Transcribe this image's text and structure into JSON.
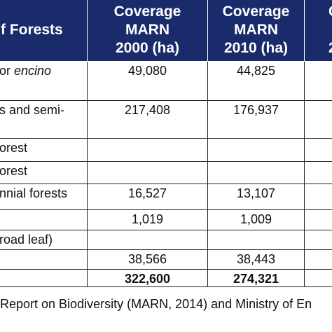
{
  "header": {
    "col0": "f Forests",
    "col1": [
      "Coverage",
      "MARN",
      "2000 (ha)"
    ],
    "col2": [
      "Coverage",
      "MARN",
      "2010 (ha)"
    ],
    "col3": [
      "C",
      "",
      "2"
    ]
  },
  "rows": [
    {
      "name": "or ",
      "name_italic": "encino",
      "v2000": "49,080",
      "v2010": "44,825",
      "h": 56
    },
    {
      "name": "s and semi-",
      "name_italic": "",
      "v2000": "217,408",
      "v2010": "176,937",
      "h": 54
    },
    {
      "name": "orest",
      "name_italic": "",
      "v2000": "",
      "v2010": "",
      "h": 33
    },
    {
      "name": "orest",
      "name_italic": "",
      "v2000": "",
      "v2010": "",
      "h": 32
    },
    {
      "name": "nnial forests",
      "name_italic": "",
      "v2000": "16,527",
      "v2010": "13,107",
      "h": 37
    },
    {
      "name": "",
      "name_italic": "",
      "v2000": "1,019",
      "v2010": "1,009",
      "h": 29
    },
    {
      "name": "road leaf)",
      "name_italic": "",
      "v2000": "",
      "v2010": "",
      "h": 28
    },
    {
      "name": "",
      "name_italic": "",
      "v2000": "38,566",
      "v2010": "38,443",
      "h": 28
    },
    {
      "name": "",
      "name_italic": "",
      "v2000": "322,600",
      "v2010": "274,321",
      "h": 24,
      "bold": true
    }
  ],
  "source": "Report on Biodiversity (MARN, 2014) and Ministry of En"
}
